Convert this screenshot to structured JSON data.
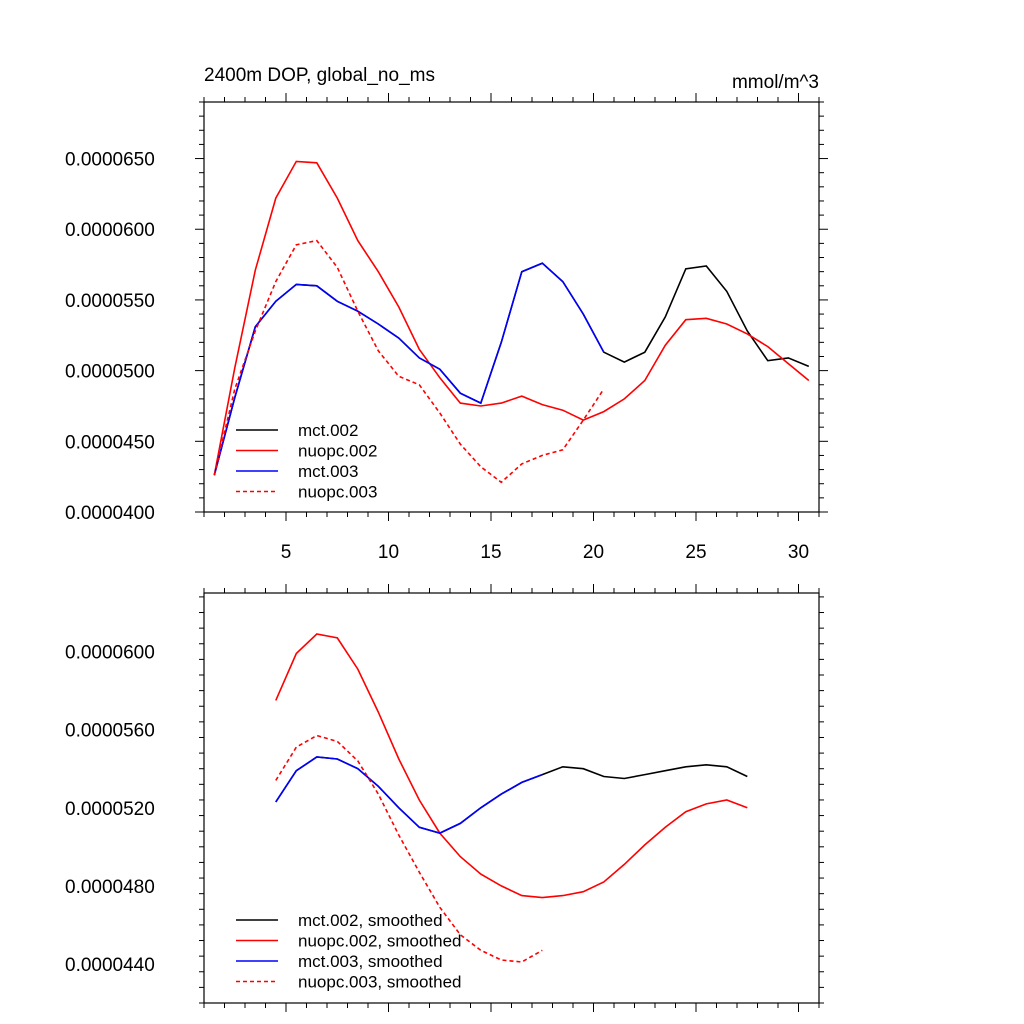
{
  "chart_data": [
    {
      "type": "line",
      "title": "2400m DOP, global_no_ms",
      "units": "mmol/m^3",
      "xlim": [
        1,
        31
      ],
      "ylim": [
        4e-05,
        6.9e-05
      ],
      "xticks": [
        5,
        10,
        15,
        20,
        25,
        30
      ],
      "xtick_labels": [
        "5",
        "10",
        "15",
        "20",
        "25",
        "30"
      ],
      "yticks": [
        4e-05,
        4.5e-05,
        5e-05,
        5.5e-05,
        6e-05,
        6.5e-05
      ],
      "ytick_labels": [
        "0.0000400",
        "0.0000450",
        "0.0000500",
        "0.0000550",
        "0.0000600",
        "0.0000650"
      ],
      "grid": false,
      "legend": "bottom-left",
      "series": [
        {
          "name": "mct.002",
          "color": "#000000",
          "dash": "solid",
          "x": [
            1.5,
            2.5,
            3.5,
            4.5,
            5.5,
            6.5,
            7.5,
            8.5,
            9.5,
            10.5,
            11.5,
            12.5,
            13.5,
            14.5,
            15.5,
            16.5,
            17.5,
            18.5,
            19.5,
            20.5,
            21.5,
            22.5,
            23.5,
            24.5,
            25.5,
            26.5,
            27.5,
            28.5,
            29.5,
            30.5
          ],
          "y": [
            4.26e-05,
            4.81e-05,
            5.31e-05,
            5.49e-05,
            5.61e-05,
            5.6e-05,
            5.49e-05,
            5.42e-05,
            5.33e-05,
            5.23e-05,
            5.09e-05,
            5.01e-05,
            4.84e-05,
            4.77e-05,
            5.2e-05,
            5.7e-05,
            5.76e-05,
            5.63e-05,
            5.4e-05,
            5.13e-05,
            5.06e-05,
            5.13e-05,
            5.38e-05,
            5.72e-05,
            5.74e-05,
            5.56e-05,
            5.28e-05,
            5.07e-05,
            5.09e-05,
            5.03e-05
          ]
        },
        {
          "name": "nuopc.002",
          "color": "#ff0000",
          "dash": "solid",
          "x": [
            1.5,
            2.5,
            3.5,
            4.5,
            5.5,
            6.5,
            7.5,
            8.5,
            9.5,
            10.5,
            11.5,
            12.5,
            13.5,
            14.5,
            15.5,
            16.5,
            17.5,
            18.5,
            19.5,
            20.5,
            21.5,
            22.5,
            23.5,
            24.5,
            25.5,
            26.5,
            27.5,
            28.5,
            29.5,
            30.5
          ],
          "y": [
            4.26e-05,
            5.02e-05,
            5.71e-05,
            6.22e-05,
            6.48e-05,
            6.47e-05,
            6.22e-05,
            5.92e-05,
            5.7e-05,
            5.45e-05,
            5.15e-05,
            4.95e-05,
            4.77e-05,
            4.75e-05,
            4.77e-05,
            4.82e-05,
            4.76e-05,
            4.72e-05,
            4.65e-05,
            4.71e-05,
            4.8e-05,
            4.93e-05,
            5.18e-05,
            5.36e-05,
            5.37e-05,
            5.33e-05,
            5.26e-05,
            5.17e-05,
            5.05e-05,
            4.93e-05
          ]
        },
        {
          "name": "mct.003",
          "color": "#0000ff",
          "dash": "solid",
          "x": [
            1.5,
            2.5,
            3.5,
            4.5,
            5.5,
            6.5,
            7.5,
            8.5,
            9.5,
            10.5,
            11.5,
            12.5,
            13.5,
            14.5,
            15.5,
            16.5,
            17.5,
            18.5,
            19.5,
            20.5
          ],
          "y": [
            4.26e-05,
            4.81e-05,
            5.31e-05,
            5.49e-05,
            5.61e-05,
            5.6e-05,
            5.49e-05,
            5.42e-05,
            5.33e-05,
            5.23e-05,
            5.09e-05,
            5.01e-05,
            4.84e-05,
            4.77e-05,
            5.2e-05,
            5.7e-05,
            5.76e-05,
            5.63e-05,
            5.4e-05,
            5.13e-05
          ]
        },
        {
          "name": "nuopc.003",
          "color": "#ff0000",
          "dash": "dashed",
          "x": [
            1.5,
            2.5,
            3.5,
            4.5,
            5.5,
            6.5,
            7.5,
            8.5,
            9.5,
            10.5,
            11.5,
            12.5,
            13.5,
            14.5,
            15.5,
            16.5,
            17.5,
            18.5,
            19.5,
            20.5
          ],
          "y": [
            4.26e-05,
            4.87e-05,
            5.28e-05,
            5.63e-05,
            5.89e-05,
            5.92e-05,
            5.73e-05,
            5.42e-05,
            5.14e-05,
            4.96e-05,
            4.9e-05,
            4.7e-05,
            4.48e-05,
            4.32e-05,
            4.21e-05,
            4.34e-05,
            4.4e-05,
            4.44e-05,
            4.65e-05,
            4.87e-05
          ]
        }
      ]
    },
    {
      "type": "line",
      "xlim": [
        1,
        31
      ],
      "ylim": [
        4.2e-05,
        6.3e-05
      ],
      "xticks": [
        5,
        10,
        15,
        20,
        25,
        30
      ],
      "yticks": [
        4.4e-05,
        4.8e-05,
        5.2e-05,
        5.6e-05,
        6e-05
      ],
      "ytick_labels": [
        "0.0000440",
        "0.0000480",
        "0.0000520",
        "0.0000560",
        "0.0000600"
      ],
      "grid": false,
      "legend": "bottom-left",
      "series": [
        {
          "name": "mct.002, smoothed",
          "color": "#000000",
          "dash": "solid",
          "x": [
            4.5,
            5.5,
            6.5,
            7.5,
            8.5,
            9.5,
            10.5,
            11.5,
            12.5,
            13.5,
            14.5,
            15.5,
            16.5,
            17.5,
            18.5,
            19.5,
            20.5,
            21.5,
            22.5,
            23.5,
            24.5,
            25.5,
            26.5,
            27.5
          ],
          "y": [
            5.23e-05,
            5.39e-05,
            5.46e-05,
            5.45e-05,
            5.4e-05,
            5.31e-05,
            5.2e-05,
            5.1e-05,
            5.07e-05,
            5.12e-05,
            5.2e-05,
            5.27e-05,
            5.33e-05,
            5.37e-05,
            5.41e-05,
            5.4e-05,
            5.36e-05,
            5.35e-05,
            5.37e-05,
            5.39e-05,
            5.41e-05,
            5.42e-05,
            5.41e-05,
            5.36e-05
          ]
        },
        {
          "name": "nuopc.002, smoothed",
          "color": "#ff0000",
          "dash": "solid",
          "x": [
            4.5,
            5.5,
            6.5,
            7.5,
            8.5,
            9.5,
            10.5,
            11.5,
            12.5,
            13.5,
            14.5,
            15.5,
            16.5,
            17.5,
            18.5,
            19.5,
            20.5,
            21.5,
            22.5,
            23.5,
            24.5,
            25.5,
            26.5,
            27.5
          ],
          "y": [
            5.75e-05,
            5.99e-05,
            6.09e-05,
            6.07e-05,
            5.91e-05,
            5.69e-05,
            5.45e-05,
            5.24e-05,
            5.07e-05,
            4.95e-05,
            4.86e-05,
            4.8e-05,
            4.75e-05,
            4.74e-05,
            4.75e-05,
            4.77e-05,
            4.82e-05,
            4.91e-05,
            5.01e-05,
            5.1e-05,
            5.18e-05,
            5.22e-05,
            5.24e-05,
            5.2e-05
          ]
        },
        {
          "name": "mct.003, smoothed",
          "color": "#0000ff",
          "dash": "solid",
          "x": [
            4.5,
            5.5,
            6.5,
            7.5,
            8.5,
            9.5,
            10.5,
            11.5,
            12.5,
            13.5,
            14.5,
            15.5,
            16.5,
            17.5
          ],
          "y": [
            5.23e-05,
            5.39e-05,
            5.46e-05,
            5.45e-05,
            5.4e-05,
            5.31e-05,
            5.2e-05,
            5.1e-05,
            5.07e-05,
            5.12e-05,
            5.2e-05,
            5.27e-05,
            5.33e-05,
            5.37e-05
          ]
        },
        {
          "name": "nuopc.003, smoothed",
          "color": "#ff0000",
          "dash": "dashed",
          "x": [
            4.5,
            5.5,
            6.5,
            7.5,
            8.5,
            9.5,
            10.5,
            11.5,
            12.5,
            13.5,
            14.5,
            15.5,
            16.5,
            17.5
          ],
          "y": [
            5.34e-05,
            5.51e-05,
            5.57e-05,
            5.54e-05,
            5.44e-05,
            5.27e-05,
            5.06e-05,
            4.87e-05,
            4.69e-05,
            4.55e-05,
            4.47e-05,
            4.42e-05,
            4.41e-05,
            4.47e-05
          ]
        }
      ]
    }
  ]
}
